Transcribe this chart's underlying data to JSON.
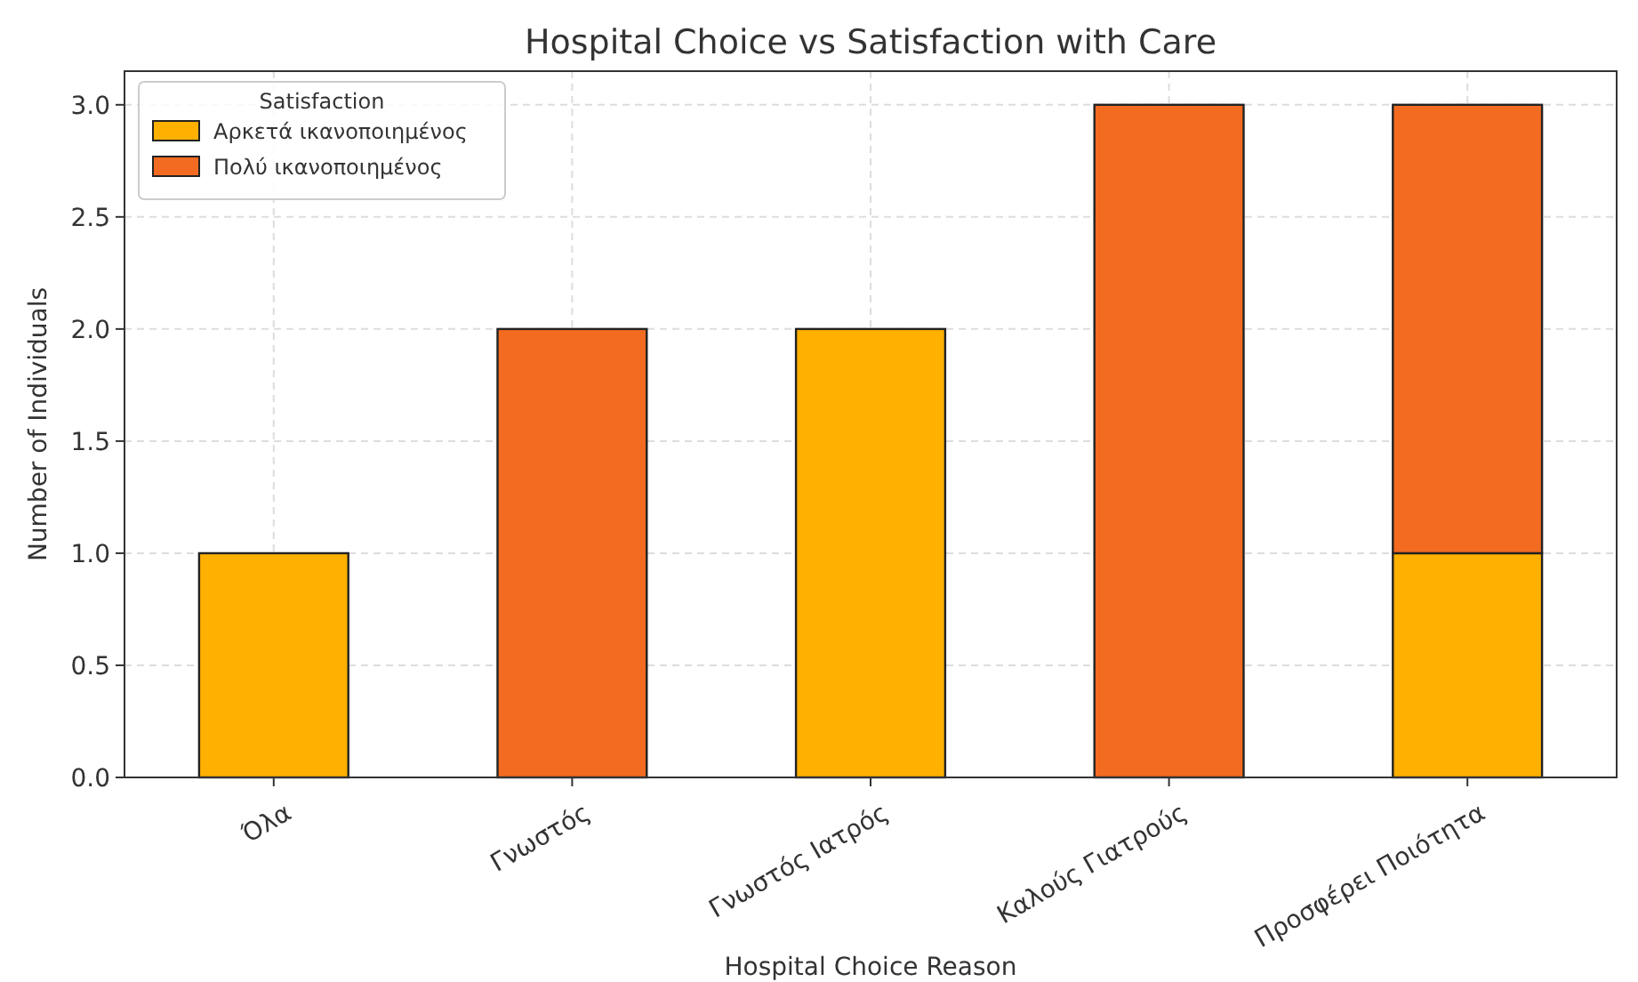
{
  "chart_data": {
    "type": "bar",
    "title": "Hospital Choice vs Satisfaction with Care",
    "xlabel": "Hospital Choice Reason",
    "ylabel": "Number of Individuals",
    "legend_title": "Satisfaction",
    "categories": [
      "Όλα",
      "Γνωστός",
      "Γνωστός Ιατρός",
      "Καλούς Γιατρούς",
      "Προσφέρει Ποιότητα"
    ],
    "series": [
      {
        "name": "Αρκετά ικανοποιημένος",
        "color": "#ffb000",
        "values": [
          1,
          0,
          2,
          0,
          1
        ]
      },
      {
        "name": "Πολύ ικανοποιημένος",
        "color": "#f26b21",
        "values": [
          0,
          2,
          0,
          3,
          2
        ]
      }
    ],
    "stacked": true,
    "ylim": [
      0,
      3.15
    ],
    "yticks": [
      {
        "value": 0,
        "label": "0.0"
      },
      {
        "value": 0.5,
        "label": "0.5"
      },
      {
        "value": 1,
        "label": "1.0"
      },
      {
        "value": 1.5,
        "label": "1.5"
      },
      {
        "value": 2,
        "label": "2.0"
      },
      {
        "value": 2.5,
        "label": "2.5"
      },
      {
        "value": 3,
        "label": "3.0"
      }
    ],
    "grid": true,
    "legend": "top left"
  }
}
